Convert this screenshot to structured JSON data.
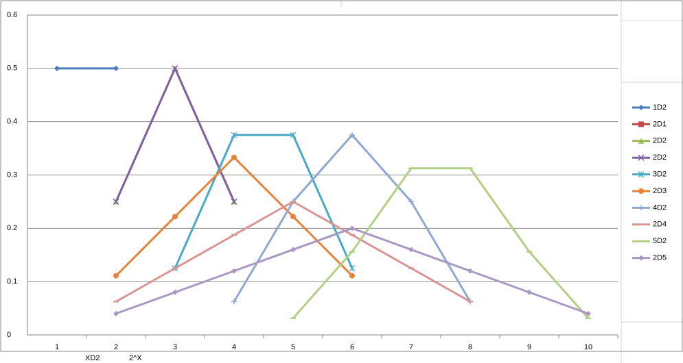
{
  "chart_data": {
    "type": "line",
    "categories": [
      "1",
      "2",
      "3",
      "4",
      "5",
      "6",
      "7",
      "8",
      "9",
      "10"
    ],
    "ylim": [
      0,
      0.6
    ],
    "yticks": [
      0,
      0.1,
      0.2,
      0.3,
      0.4,
      0.5,
      0.6
    ],
    "grid": true,
    "legend": "right",
    "series": [
      {
        "name": "1D2",
        "color": "#4a7ebb",
        "marker": "diamond",
        "values": [
          0.5,
          0.5,
          null,
          null,
          null,
          null,
          null,
          null,
          null,
          null
        ]
      },
      {
        "name": "2D1",
        "color": "#be4b48",
        "marker": "square",
        "values": [
          null,
          null,
          null,
          null,
          null,
          null,
          null,
          null,
          null,
          null
        ]
      },
      {
        "name": "2D2",
        "color": "#98b954",
        "marker": "triangle",
        "values": [
          null,
          0.25,
          0.5,
          0.25,
          null,
          null,
          null,
          null,
          null,
          null
        ]
      },
      {
        "name": "2D2",
        "color": "#7d60a0",
        "marker": "x",
        "values": [
          null,
          0.25,
          0.5,
          0.25,
          null,
          null,
          null,
          null,
          null,
          null
        ]
      },
      {
        "name": "3D2",
        "color": "#46aac5",
        "marker": "star",
        "values": [
          null,
          null,
          0.125,
          0.375,
          0.375,
          0.125,
          null,
          null,
          null,
          null
        ]
      },
      {
        "name": "2D3",
        "color": "#e8823a",
        "marker": "circle",
        "values": [
          null,
          0.111,
          0.222,
          0.333,
          0.222,
          0.111,
          null,
          null,
          null,
          null
        ]
      },
      {
        "name": "4D2",
        "color": "#8ea8d2",
        "marker": "plus",
        "values": [
          null,
          null,
          null,
          0.0625,
          0.25,
          0.375,
          0.25,
          0.0625,
          null,
          null
        ]
      },
      {
        "name": "2D4",
        "color": "#d99694",
        "marker": "dash",
        "values": [
          null,
          0.0625,
          0.125,
          0.1875,
          0.25,
          0.1875,
          0.125,
          0.0625,
          null,
          null
        ]
      },
      {
        "name": "5D2",
        "color": "#b3cf84",
        "marker": "dash",
        "values": [
          null,
          null,
          null,
          null,
          0.03125,
          0.15625,
          0.3125,
          0.3125,
          0.15625,
          0.03125
        ]
      },
      {
        "name": "2D5",
        "color": "#a898c3",
        "marker": "diamond",
        "values": [
          null,
          0.04,
          0.08,
          0.12,
          0.16,
          0.2,
          0.16,
          0.12,
          0.08,
          0.04
        ]
      }
    ]
  },
  "sheet_cells": [
    "XD2",
    "2^X"
  ]
}
